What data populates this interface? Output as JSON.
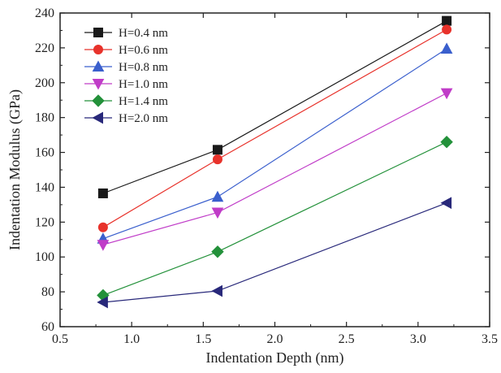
{
  "chart_data": {
    "type": "line",
    "title": "",
    "xlabel": "Indentation Depth (nm)",
    "ylabel": "Indentation Modulus (GPa)",
    "xlim": [
      0.5,
      3.5
    ],
    "ylim": [
      60,
      240
    ],
    "xticks": [
      "0.5",
      "1.0",
      "1.5",
      "2.0",
      "2.5",
      "3.0",
      "3.5"
    ],
    "yticks": [
      "60",
      "80",
      "100",
      "120",
      "140",
      "160",
      "180",
      "200",
      "220",
      "240"
    ],
    "grid": false,
    "legend_position": "top-left",
    "x": [
      0.8,
      1.6,
      3.2
    ],
    "series": [
      {
        "name": "H=0.4 nm",
        "values": [
          136.5,
          161.5,
          235.5
        ],
        "color": "#1a1a1a",
        "marker": "square"
      },
      {
        "name": "H=0.6 nm",
        "values": [
          117,
          156,
          230.5
        ],
        "color": "#e8322b",
        "marker": "circle"
      },
      {
        "name": "H=0.8 nm",
        "values": [
          110.5,
          134.5,
          219.5
        ],
        "color": "#3a5fcd",
        "marker": "triangle-up"
      },
      {
        "name": "H=1.0 nm",
        "values": [
          107,
          125.5,
          194
        ],
        "color": "#c03cc8",
        "marker": "triangle-down"
      },
      {
        "name": "H=1.4 nm",
        "values": [
          78,
          103,
          166
        ],
        "color": "#23913a",
        "marker": "diamond"
      },
      {
        "name": "H=2.0 nm",
        "values": [
          74,
          80.5,
          131
        ],
        "color": "#28287a",
        "marker": "triangle-left"
      }
    ]
  }
}
